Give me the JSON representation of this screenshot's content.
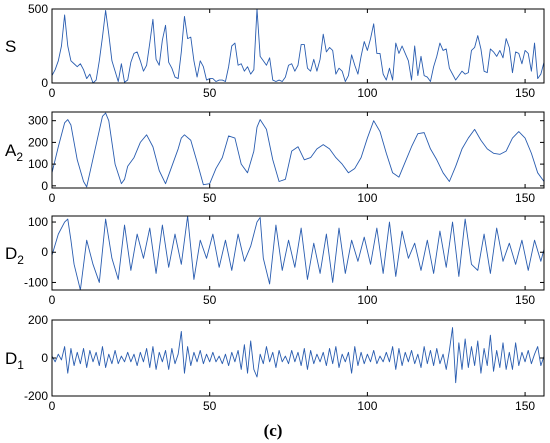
{
  "caption": "(c)",
  "line_color": "#2a5db0",
  "chart_data": [
    {
      "type": "line",
      "ylabel": "S",
      "ylabel_sub": "",
      "xlim": [
        0,
        156
      ],
      "ylim": [
        0,
        500
      ],
      "xticks": [
        0,
        50,
        100,
        150
      ],
      "yticks": [
        0,
        500
      ],
      "series": [
        {
          "x": [
            0,
            1,
            2,
            3,
            4,
            5,
            6,
            7,
            8,
            9,
            10,
            11,
            12,
            13,
            14,
            15,
            16,
            17,
            18,
            19,
            20,
            21,
            22,
            23,
            24,
            25,
            26,
            27,
            28,
            29,
            30,
            31,
            32,
            33,
            34,
            35,
            36,
            37,
            38,
            39,
            40,
            41,
            42,
            43,
            44,
            45,
            46,
            47,
            48,
            49,
            50,
            51,
            52,
            53,
            54,
            55,
            56,
            57,
            58,
            59,
            60,
            61,
            62,
            63,
            64,
            65,
            66,
            67,
            68,
            69,
            70,
            71,
            72,
            73,
            74,
            75,
            76,
            77,
            78,
            79,
            80,
            81,
            82,
            83,
            84,
            85,
            86,
            87,
            88,
            89,
            90,
            91,
            92,
            93,
            94,
            95,
            96,
            97,
            98,
            99,
            100,
            101,
            102,
            103,
            104,
            105,
            106,
            107,
            108,
            109,
            110,
            111,
            112,
            113,
            114,
            115,
            116,
            117,
            118,
            119,
            120,
            121,
            122,
            123,
            124,
            125,
            126,
            127,
            128,
            129,
            130,
            131,
            132,
            133,
            134,
            135,
            136,
            137,
            138,
            139,
            140,
            141,
            142,
            143,
            144,
            145,
            146,
            147,
            148,
            149,
            150,
            151,
            152,
            153,
            154,
            155,
            156
          ],
          "values": [
            50,
            90,
            150,
            250,
            460,
            250,
            150,
            130,
            110,
            130,
            90,
            30,
            60,
            0,
            20,
            150,
            310,
            490,
            330,
            150,
            80,
            10,
            130,
            5,
            20,
            140,
            200,
            210,
            150,
            80,
            120,
            270,
            430,
            160,
            120,
            290,
            390,
            140,
            100,
            40,
            30,
            210,
            450,
            300,
            310,
            150,
            40,
            150,
            110,
            20,
            30,
            30,
            10,
            20,
            20,
            10,
            110,
            250,
            270,
            120,
            130,
            80,
            110,
            60,
            90,
            500,
            180,
            150,
            120,
            170,
            20,
            10,
            20,
            10,
            40,
            120,
            130,
            80,
            120,
            260,
            260,
            100,
            80,
            160,
            80,
            160,
            330,
            210,
            240,
            220,
            60,
            100,
            80,
            10,
            50,
            190,
            120,
            60,
            180,
            280,
            220,
            300,
            400,
            200,
            200,
            60,
            20,
            100,
            20,
            270,
            200,
            250,
            200,
            150,
            20,
            250,
            50,
            180,
            50,
            40,
            10,
            110,
            180,
            270,
            220,
            230,
            100,
            60,
            20,
            50,
            80,
            60,
            70,
            220,
            240,
            320,
            230,
            80,
            70,
            230,
            210,
            180,
            220,
            170,
            300,
            240,
            70,
            210,
            200,
            130,
            220,
            200,
            80,
            270,
            30,
            60,
            140
          ]
        }
      ]
    },
    {
      "type": "line",
      "ylabel": "A",
      "ylabel_sub": "2",
      "xlim": [
        0,
        156
      ],
      "ylim": [
        -10,
        340
      ],
      "xticks": [
        0,
        50,
        100,
        150
      ],
      "yticks": [
        0,
        100,
        200,
        300
      ],
      "series": [
        {
          "x": [
            0,
            2,
            4,
            5,
            6,
            8,
            10,
            11,
            12,
            14,
            16,
            17,
            18,
            20,
            22,
            23,
            24,
            26,
            28,
            30,
            32,
            34,
            36,
            38,
            40,
            41,
            42,
            44,
            46,
            48,
            50,
            52,
            54,
            56,
            58,
            60,
            62,
            64,
            65,
            66,
            68,
            70,
            72,
            74,
            76,
            78,
            80,
            82,
            84,
            86,
            88,
            90,
            92,
            94,
            96,
            98,
            100,
            102,
            104,
            106,
            108,
            110,
            112,
            114,
            116,
            118,
            120,
            122,
            124,
            126,
            128,
            130,
            132,
            134,
            136,
            138,
            140,
            142,
            144,
            146,
            148,
            150,
            152,
            154,
            156
          ],
          "values": [
            60,
            180,
            290,
            305,
            280,
            120,
            20,
            -5,
            60,
            190,
            320,
            335,
            300,
            100,
            10,
            30,
            90,
            130,
            200,
            235,
            180,
            70,
            10,
            90,
            170,
            220,
            235,
            210,
            110,
            5,
            10,
            80,
            130,
            230,
            220,
            100,
            60,
            160,
            270,
            305,
            260,
            120,
            20,
            30,
            160,
            180,
            120,
            130,
            170,
            190,
            170,
            130,
            100,
            60,
            80,
            130,
            220,
            300,
            250,
            150,
            60,
            40,
            110,
            180,
            240,
            245,
            170,
            120,
            60,
            20,
            90,
            170,
            220,
            260,
            210,
            170,
            150,
            145,
            160,
            220,
            250,
            220,
            150,
            60,
            20
          ]
        }
      ]
    },
    {
      "type": "line",
      "ylabel": "D",
      "ylabel_sub": "2",
      "xlim": [
        0,
        156
      ],
      "ylim": [
        -125,
        120
      ],
      "xticks": [
        0,
        50,
        100,
        150
      ],
      "yticks": [
        -100,
        0,
        100
      ],
      "series": [
        {
          "x": [
            0,
            2,
            4,
            5,
            6,
            7,
            9,
            11,
            13,
            15,
            17,
            19,
            21,
            23,
            25,
            27,
            29,
            31,
            33,
            35,
            37,
            39,
            41,
            43,
            45,
            47,
            49,
            51,
            53,
            55,
            57,
            59,
            61,
            63,
            65,
            66,
            67,
            69,
            71,
            73,
            75,
            77,
            79,
            81,
            83,
            85,
            87,
            89,
            91,
            93,
            95,
            97,
            99,
            101,
            103,
            105,
            107,
            109,
            111,
            113,
            115,
            117,
            119,
            121,
            123,
            125,
            127,
            129,
            131,
            133,
            135,
            137,
            139,
            141,
            143,
            145,
            147,
            149,
            151,
            153,
            155,
            156
          ],
          "values": [
            -10,
            60,
            100,
            110,
            40,
            -40,
            -125,
            40,
            -40,
            -100,
            110,
            -20,
            -90,
            90,
            -60,
            60,
            -20,
            80,
            -70,
            90,
            -50,
            60,
            -40,
            120,
            -90,
            40,
            -20,
            60,
            -50,
            40,
            -60,
            60,
            -30,
            20,
            100,
            115,
            -20,
            -105,
            90,
            -60,
            40,
            -50,
            80,
            -90,
            30,
            -70,
            60,
            -100,
            80,
            -70,
            40,
            -30,
            50,
            -40,
            80,
            -70,
            100,
            -80,
            70,
            -20,
            30,
            -60,
            40,
            -70,
            70,
            -50,
            100,
            -80,
            110,
            -40,
            -60,
            60,
            -70,
            80,
            -30,
            30,
            -40,
            40,
            -60,
            40,
            -30,
            10
          ]
        }
      ]
    },
    {
      "type": "line",
      "ylabel": "D",
      "ylabel_sub": "1",
      "xlim": [
        0,
        156
      ],
      "ylim": [
        -200,
        200
      ],
      "xticks": [
        0,
        50,
        100,
        150
      ],
      "yticks": [
        -200,
        0,
        200
      ],
      "series": [
        {
          "x": [
            0,
            1,
            2,
            3,
            4,
            5,
            6,
            7,
            8,
            9,
            10,
            11,
            12,
            13,
            14,
            15,
            16,
            17,
            18,
            19,
            20,
            21,
            22,
            23,
            24,
            25,
            26,
            27,
            28,
            29,
            30,
            31,
            32,
            33,
            34,
            35,
            36,
            37,
            38,
            39,
            40,
            41,
            42,
            43,
            44,
            45,
            46,
            47,
            48,
            49,
            50,
            51,
            52,
            53,
            54,
            55,
            56,
            57,
            58,
            59,
            60,
            61,
            62,
            63,
            64,
            65,
            66,
            67,
            68,
            69,
            70,
            71,
            72,
            73,
            74,
            75,
            76,
            77,
            78,
            79,
            80,
            81,
            82,
            83,
            84,
            85,
            86,
            87,
            88,
            89,
            90,
            91,
            92,
            93,
            94,
            95,
            96,
            97,
            98,
            99,
            100,
            101,
            102,
            103,
            104,
            105,
            106,
            107,
            108,
            109,
            110,
            111,
            112,
            113,
            114,
            115,
            116,
            117,
            118,
            119,
            120,
            121,
            122,
            123,
            124,
            125,
            126,
            127,
            128,
            129,
            130,
            131,
            132,
            133,
            134,
            135,
            136,
            137,
            138,
            139,
            140,
            141,
            142,
            143,
            144,
            145,
            146,
            147,
            148,
            149,
            150,
            151,
            152,
            153,
            154,
            155,
            156
          ],
          "values": [
            10,
            -20,
            20,
            -10,
            60,
            -80,
            50,
            -40,
            30,
            -30,
            50,
            -50,
            40,
            -20,
            30,
            -40,
            60,
            -50,
            20,
            -30,
            40,
            -30,
            10,
            -20,
            30,
            -20,
            20,
            -40,
            30,
            -20,
            50,
            -50,
            60,
            -60,
            30,
            -20,
            40,
            -60,
            50,
            -30,
            20,
            140,
            -80,
            60,
            -40,
            30,
            -20,
            40,
            -30,
            20,
            -20,
            30,
            -20,
            10,
            -30,
            20,
            -40,
            30,
            -20,
            40,
            -60,
            70,
            -80,
            90,
            -60,
            -100,
            20,
            -30,
            60,
            -20,
            30,
            -50,
            40,
            -20,
            10,
            -30,
            40,
            -20,
            30,
            -40,
            50,
            -60,
            40,
            -30,
            20,
            -20,
            30,
            -40,
            50,
            -30,
            60,
            -50,
            20,
            -20,
            30,
            -80,
            60,
            -40,
            30,
            -30,
            20,
            -20,
            40,
            -30,
            10,
            -20,
            30,
            -20,
            60,
            -60,
            50,
            -40,
            30,
            -20,
            40,
            -30,
            20,
            -50,
            60,
            -30,
            40,
            -40,
            50,
            -30,
            20,
            -60,
            40,
            160,
            -130,
            80,
            -60,
            100,
            -50,
            60,
            -40,
            90,
            -80,
            50,
            -40,
            120,
            -70,
            40,
            -50,
            80,
            -60,
            30,
            -60,
            80,
            -40,
            30,
            -20,
            40,
            -30,
            20,
            60,
            -40,
            10
          ]
        }
      ]
    }
  ]
}
